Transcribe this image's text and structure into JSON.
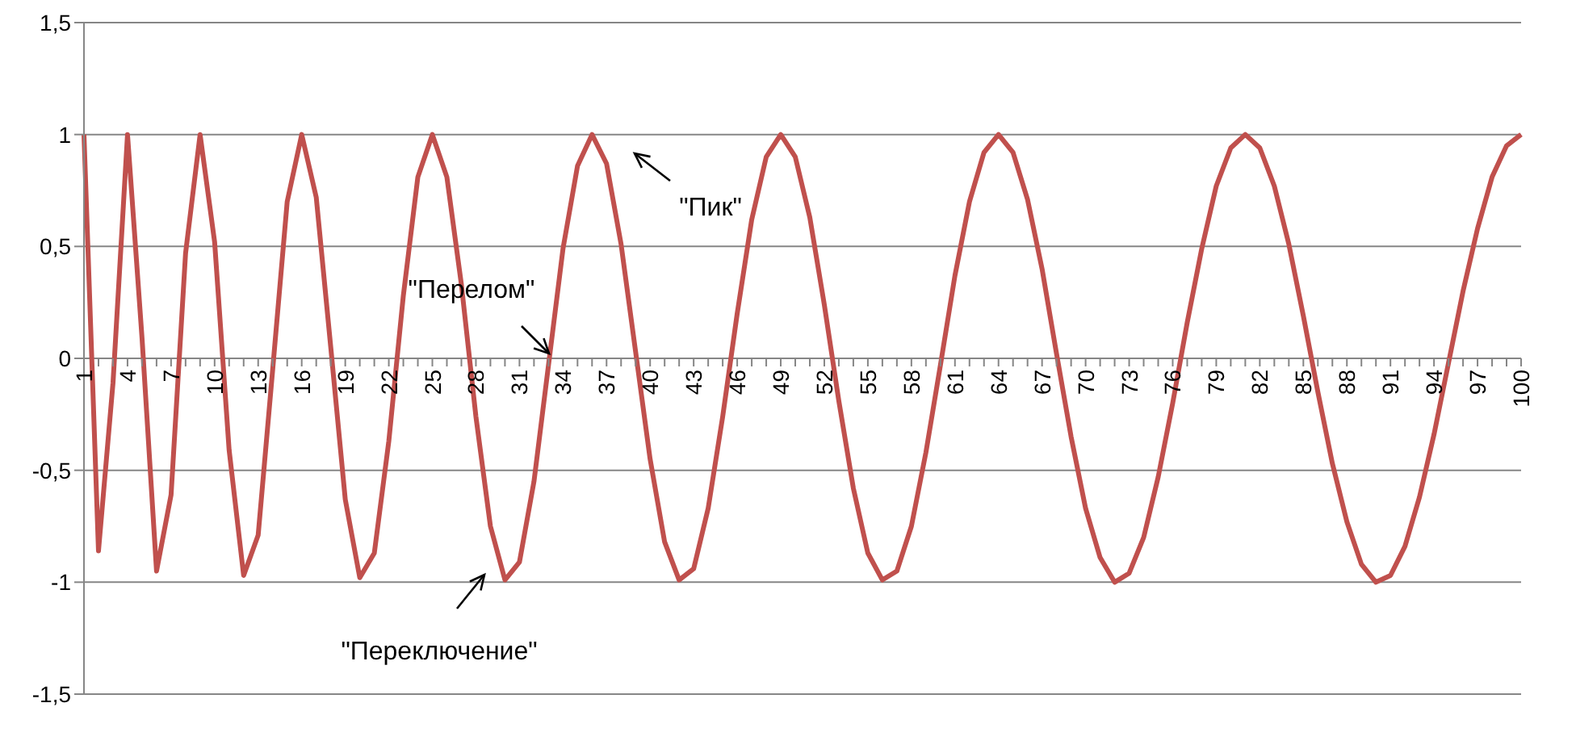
{
  "chart_data": {
    "type": "line",
    "categories": [
      "1",
      null,
      null,
      "4",
      null,
      null,
      "7",
      null,
      null,
      "10",
      null,
      null,
      "13",
      null,
      null,
      "16",
      null,
      null,
      "19",
      null,
      null,
      "22",
      null,
      null,
      "25",
      null,
      null,
      "28",
      null,
      null,
      "31",
      null,
      null,
      "34",
      null,
      null,
      "37",
      null,
      null,
      "40",
      null,
      null,
      "43",
      null,
      null,
      "46",
      null,
      null,
      "49",
      null,
      null,
      "52",
      null,
      null,
      "55",
      null,
      null,
      "58",
      null,
      null,
      "61",
      null,
      null,
      "64",
      null,
      null,
      "67",
      null,
      null,
      "70",
      null,
      null,
      "73",
      null,
      null,
      "76",
      null,
      null,
      "79",
      null,
      null,
      "82",
      null,
      null,
      "85",
      null,
      null,
      "88",
      null,
      null,
      "91",
      null,
      null,
      "94",
      null,
      null,
      "97",
      null,
      null,
      "100"
    ],
    "series": [
      {
        "color": "#c0504d",
        "values": [
          1,
          -0.86,
          -0.11,
          1,
          0.09,
          -0.95,
          -0.61,
          0.47,
          1,
          0.52,
          -0.41,
          -0.97,
          -0.79,
          -0.05,
          0.7,
          1,
          0.72,
          0.05,
          -0.63,
          -0.98,
          -0.87,
          -0.37,
          0.28,
          0.81,
          1,
          0.81,
          0.33,
          -0.26,
          -0.75,
          -0.99,
          -0.91,
          -0.55,
          -0.03,
          0.49,
          0.86,
          1,
          0.87,
          0.51,
          0.03,
          -0.45,
          -0.82,
          -0.99,
          -0.94,
          -0.67,
          -0.26,
          0.2,
          0.62,
          0.9,
          1,
          0.9,
          0.63,
          0.24,
          -0.19,
          -0.58,
          -0.87,
          -0.99,
          -0.95,
          -0.75,
          -0.42,
          -0.03,
          0.37,
          0.7,
          0.92,
          1,
          0.92,
          0.71,
          0.4,
          0.02,
          -0.35,
          -0.67,
          -0.89,
          -1,
          -0.96,
          -0.8,
          -0.53,
          -0.2,
          0.16,
          0.49,
          0.77,
          0.94,
          1,
          0.94,
          0.77,
          0.51,
          0.19,
          -0.15,
          -0.47,
          -0.73,
          -0.92,
          -1,
          -0.97,
          -0.84,
          -0.62,
          -0.34,
          -0.02,
          0.3,
          0.58,
          0.81,
          0.95,
          1
        ]
      }
    ],
    "ylim": [
      -1.5,
      1.5
    ],
    "yticks": [
      {
        "value": -1.5,
        "label": "-1,5"
      },
      -1,
      {
        "value": -0.5,
        "label": "-0,5"
      },
      0,
      {
        "value": 0.5,
        "label": "0,5"
      },
      1,
      {
        "value": 1.5,
        "label": "1,5"
      }
    ],
    "grid": "y",
    "legend": false,
    "marker": "none",
    "line_style": "solid",
    "annotations": [
      "\"Пик\"",
      "\"Перелом\"",
      "\"Переключение\""
    ]
  }
}
